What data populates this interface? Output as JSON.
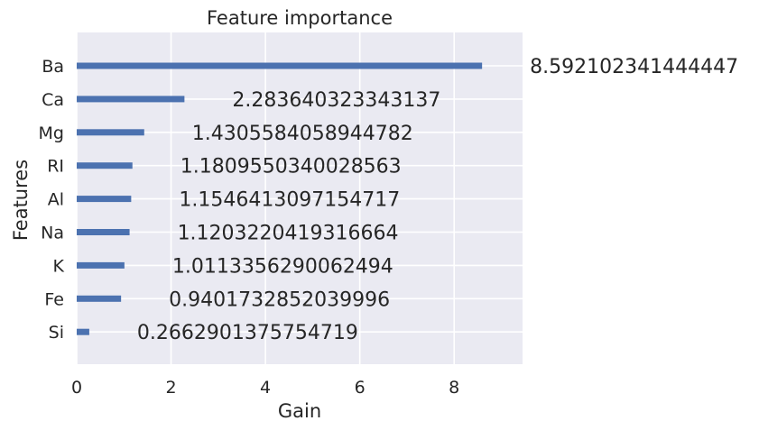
{
  "chart_data": {
    "type": "bar",
    "orientation": "horizontal",
    "title": "Feature importance",
    "xlabel": "Gain",
    "ylabel": "Features",
    "categories": [
      "Ba",
      "Ca",
      "Mg",
      "RI",
      "Al",
      "Na",
      "K",
      "Fe",
      "Si"
    ],
    "values": [
      8.592102341444447,
      2.283640323343137,
      1.4305584058944782,
      1.1809550340028563,
      1.1546413097154717,
      1.1203220419316664,
      1.0113356290062494,
      0.9401732852039996,
      0.2662901375754719
    ],
    "value_labels": [
      "8.592102341444447",
      "2.283640323343137",
      "1.4305584058944782",
      "1.1809550340028563",
      "1.1546413097154717",
      "1.1203220419316664",
      "1.0113356290062494",
      "0.9401732852039996",
      "0.2662901375754719"
    ],
    "xticks": [
      0,
      2,
      4,
      6,
      8
    ],
    "xlim": [
      0,
      9.45
    ],
    "grid": true,
    "bar_color": "#4c72b0",
    "background_color": "#eaeaf2"
  }
}
